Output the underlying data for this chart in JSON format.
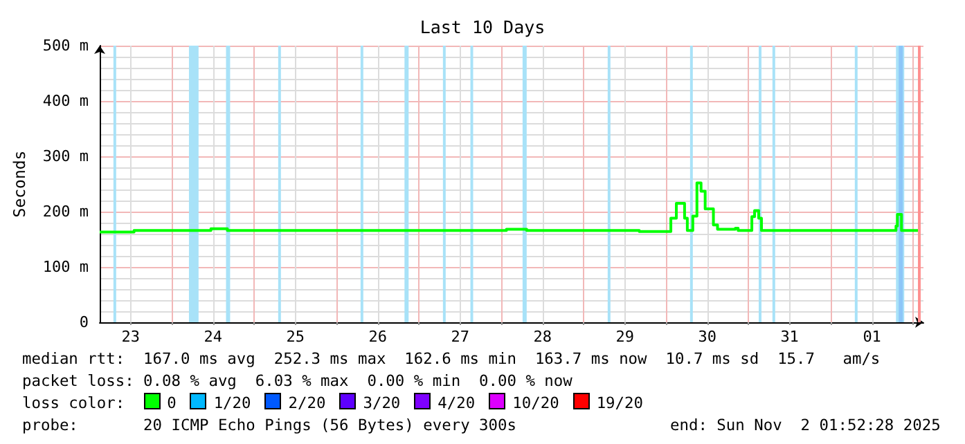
{
  "chart_data": {
    "type": "step",
    "title": "Last 10 Days",
    "ylabel": "Seconds",
    "xlim": [
      "2025-10-23T03:00",
      "2025-11-02T03:00"
    ],
    "xticks": [
      {
        "value": "2025-10-23T12:00",
        "label": "23"
      },
      {
        "value": "2025-10-24T00:00",
        "label": null
      },
      {
        "value": "2025-10-24T12:00",
        "label": "24"
      },
      {
        "value": "2025-10-25T00:00",
        "label": null
      },
      {
        "value": "2025-10-25T12:00",
        "label": "25"
      },
      {
        "value": "2025-10-26T00:00",
        "label": null
      },
      {
        "value": "2025-10-26T12:00",
        "label": "26"
      },
      {
        "value": "2025-10-27T00:00",
        "label": null
      },
      {
        "value": "2025-10-27T12:00",
        "label": "27"
      },
      {
        "value": "2025-10-28T00:00",
        "label": null
      },
      {
        "value": "2025-10-28T12:00",
        "label": "28"
      },
      {
        "value": "2025-10-29T00:00",
        "label": null
      },
      {
        "value": "2025-10-29T12:00",
        "label": "29"
      },
      {
        "value": "2025-10-30T00:00",
        "label": null
      },
      {
        "value": "2025-10-30T12:00",
        "label": "30"
      },
      {
        "value": "2025-10-31T00:00",
        "label": null
      },
      {
        "value": "2025-10-31T12:00",
        "label": "31"
      },
      {
        "value": "2025-11-01T00:00",
        "label": null
      },
      {
        "value": "2025-11-01T12:00",
        "label": "01"
      },
      {
        "value": "2025-11-02T00:00",
        "label": null
      }
    ],
    "ylim": [
      0,
      500
    ],
    "yticks": [
      0,
      {
        "value": 100,
        "label": "100 m"
      },
      {
        "value": 200,
        "label": "200 m"
      },
      {
        "value": 300,
        "label": "300 m"
      },
      {
        "value": 400,
        "label": "400 m"
      },
      {
        "value": 500,
        "label": "500 m"
      }
    ],
    "grid": true,
    "marker": "none",
    "line_style": "solid",
    "x": [
      "2025-10-23T03:00",
      "2025-10-23T13:00",
      "2025-10-24T11:24",
      "2025-10-24T16:12",
      "2025-10-28T01:30",
      "2025-10-28T07:24",
      "2025-10-29T16:12",
      "2025-10-30T01:24",
      "2025-10-30T03:00",
      "2025-10-30T05:24",
      "2025-10-30T06:12",
      "2025-10-30T07:48",
      "2025-10-30T09:00",
      "2025-10-30T10:12",
      "2025-10-30T11:24",
      "2025-10-30T13:48",
      "2025-10-30T15:00",
      "2025-10-30T20:12",
      "2025-10-30T21:00",
      "2025-10-31T01:00",
      "2025-10-31T01:48",
      "2025-10-31T03:00",
      "2025-10-31T03:48",
      "2025-11-01T19:00",
      "2025-11-01T19:24",
      "2025-11-01T20:36",
      "2025-11-02T01:52"
    ],
    "series": [
      {
        "color": "#00ff00",
        "values": [
          163,
          166,
          169,
          166,
          168,
          166,
          164,
          188,
          215,
          188,
          166,
          192,
          252,
          237,
          205,
          176,
          168,
          170,
          166,
          191,
          202,
          188,
          166,
          174,
          195,
          166,
          166
        ]
      }
    ],
    "bands": [
      {
        "axis": "x",
        "from": "2025-10-23T07:00",
        "to": "2025-10-23T07:48",
        "color": "#a8e2f8"
      },
      {
        "axis": "x",
        "from": "2025-10-24T05:00",
        "to": "2025-10-24T07:48",
        "color": "#a8e2f8"
      },
      {
        "axis": "x",
        "from": "2025-10-24T15:48",
        "to": "2025-10-24T17:00",
        "color": "#a8e2f8"
      },
      {
        "axis": "x",
        "from": "2025-10-25T07:00",
        "to": "2025-10-25T07:48",
        "color": "#a8e2f8"
      },
      {
        "axis": "x",
        "from": "2025-10-26T07:00",
        "to": "2025-10-26T07:48",
        "color": "#a8e2f8"
      },
      {
        "axis": "x",
        "from": "2025-10-26T19:48",
        "to": "2025-10-26T21:00",
        "color": "#a8e2f8"
      },
      {
        "axis": "x",
        "from": "2025-10-27T07:00",
        "to": "2025-10-27T07:48",
        "color": "#a8e2f8"
      },
      {
        "axis": "x",
        "from": "2025-10-27T15:00",
        "to": "2025-10-27T15:48",
        "color": "#a8e2f8"
      },
      {
        "axis": "x",
        "from": "2025-10-28T06:12",
        "to": "2025-10-28T07:24",
        "color": "#a8e2f8"
      },
      {
        "axis": "x",
        "from": "2025-10-29T07:00",
        "to": "2025-10-29T07:48",
        "color": "#a8e2f8"
      },
      {
        "axis": "x",
        "from": "2025-10-30T07:00",
        "to": "2025-10-30T07:48",
        "color": "#a8e2f8"
      },
      {
        "axis": "x",
        "from": "2025-10-31T03:00",
        "to": "2025-10-31T03:48",
        "color": "#a8e2f8"
      },
      {
        "axis": "x",
        "from": "2025-10-31T07:00",
        "to": "2025-10-31T07:48",
        "color": "#a8e2f8"
      },
      {
        "axis": "x",
        "from": "2025-11-01T07:00",
        "to": "2025-11-01T07:48",
        "color": "#a8e2f8"
      },
      {
        "axis": "x",
        "from": "2025-11-01T19:00",
        "to": "2025-11-01T21:24",
        "color": "#a8e2f8"
      },
      {
        "axis": "x",
        "from": "2025-11-01T19:48",
        "to": "2025-11-01T21:00",
        "color": "#8cc6f8"
      }
    ],
    "ref_lines": [
      {
        "axis": "x",
        "value": "2025-11-02T01:52",
        "color": "#ff9090"
      }
    ],
    "annotations": [
      "median rtt:  167.0 ms avg  252.3 ms max  162.6 ms min  163.7 ms now  10.7 ms sd  15.7   am/s",
      "packet loss: 0.08 % avg  6.03 % max  0.00 % min  0.00 % now",
      "loss color:",
      "0",
      "1/20",
      "2/20",
      "3/20",
      "4/20",
      "10/20",
      "19/20",
      "probe:       20 ICMP Echo Pings (56 Bytes) every 300s",
      "end: Sun Nov  2 01:52:28 2025"
    ]
  }
}
